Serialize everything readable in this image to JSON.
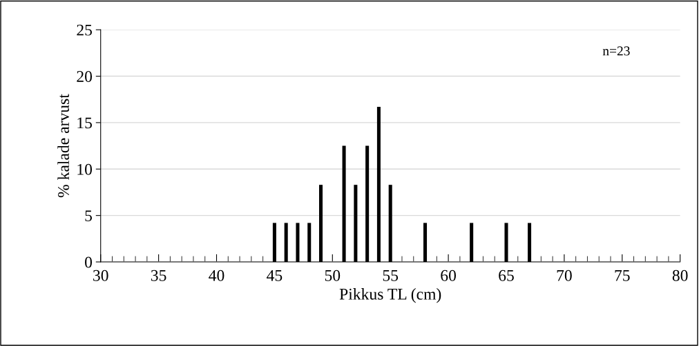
{
  "chart_data": {
    "type": "bar",
    "x": [
      45,
      46,
      47,
      48,
      49,
      51,
      52,
      53,
      54,
      55,
      58,
      62,
      65,
      67
    ],
    "values": [
      4.2,
      4.2,
      4.2,
      4.2,
      8.3,
      12.5,
      8.3,
      12.5,
      16.7,
      8.3,
      4.2,
      4.2,
      4.2,
      4.2
    ],
    "color": "#000000",
    "xlabel": "Pikkus TL (cm)",
    "ylabel": "% kalade arvust",
    "xlim": [
      30,
      80
    ],
    "xticks": [
      30,
      35,
      40,
      45,
      50,
      55,
      60,
      65,
      70,
      75,
      80
    ],
    "ylim": [
      0,
      25
    ],
    "yticks": [
      0,
      5,
      10,
      15,
      20,
      25
    ],
    "grid": "y",
    "legend": false,
    "annotations": [
      "n=23"
    ]
  }
}
